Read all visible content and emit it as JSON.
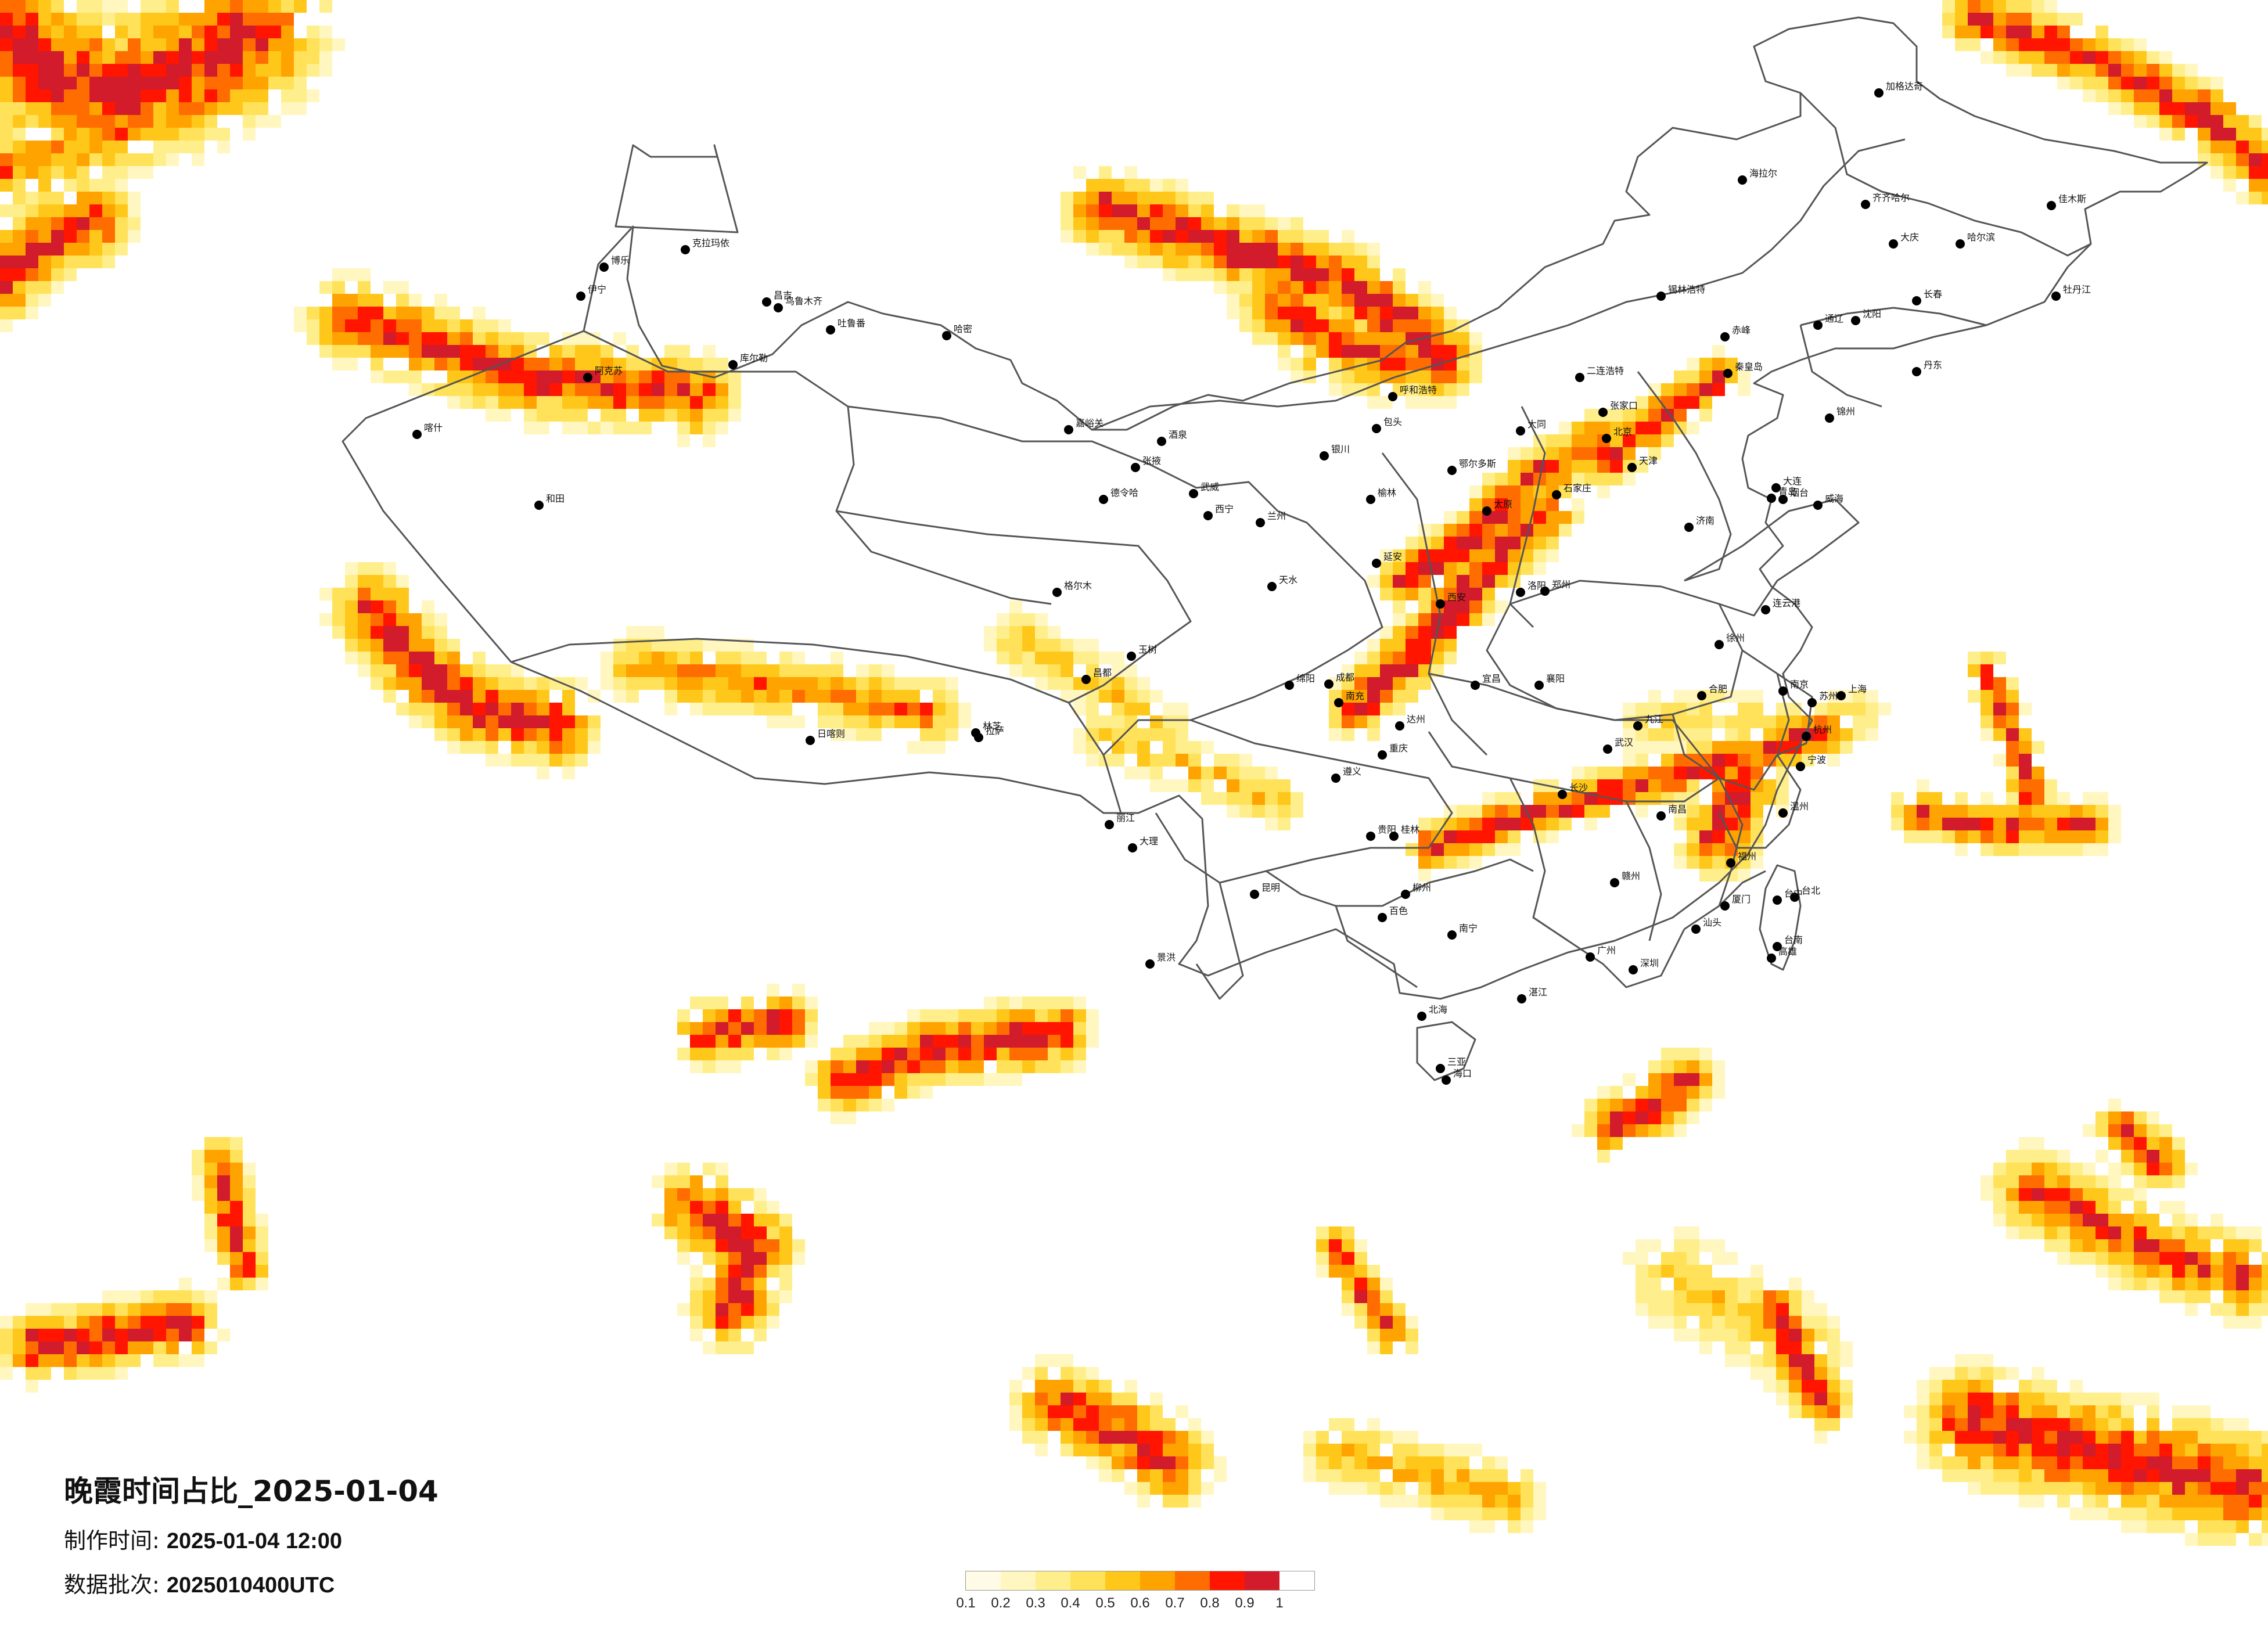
{
  "title": "晚霞时间占比_2025-01-04",
  "production_time": {
    "label": "制作时间:",
    "value": "2025-01-04 12:00"
  },
  "data_batch": {
    "label": "数据批次:",
    "value": "2025010400UTC"
  },
  "legend": {
    "ticks": [
      "0.1",
      "0.2",
      "0.3",
      "0.4",
      "0.5",
      "0.6",
      "0.7",
      "0.8",
      "0.9",
      "1"
    ],
    "colors": [
      "#fffbe6",
      "#fff6c0",
      "#ffef8c",
      "#ffe259",
      "#ffc71a",
      "#ffa300",
      "#ff6d00",
      "#ff1500",
      "#d21b2b"
    ]
  },
  "cities": [
    {
      "name": "克拉玛依"
    },
    {
      "name": "博乐"
    },
    {
      "name": "伊宁"
    },
    {
      "name": "昌吉"
    },
    {
      "name": "乌鲁木齐"
    },
    {
      "name": "吐鲁番"
    },
    {
      "name": "哈密"
    },
    {
      "name": "库尔勒"
    },
    {
      "name": "阿克苏"
    },
    {
      "name": "喀什"
    },
    {
      "name": "和田"
    },
    {
      "name": "格尔木"
    },
    {
      "name": "德令哈"
    },
    {
      "name": "西宁"
    },
    {
      "name": "兰州"
    },
    {
      "name": "银川"
    },
    {
      "name": "呼和浩特"
    },
    {
      "name": "包头"
    },
    {
      "name": "北京"
    },
    {
      "name": "天津"
    },
    {
      "name": "石家庄"
    },
    {
      "name": "太原"
    },
    {
      "name": "郑州"
    },
    {
      "name": "济南"
    },
    {
      "name": "青岛"
    },
    {
      "name": "西安"
    },
    {
      "name": "成都"
    },
    {
      "name": "重庆"
    },
    {
      "name": "武汉"
    },
    {
      "name": "长沙"
    },
    {
      "name": "南京"
    },
    {
      "name": "上海"
    },
    {
      "name": "杭州"
    },
    {
      "name": "合肥"
    },
    {
      "name": "南昌"
    },
    {
      "name": "福州"
    },
    {
      "name": "广州"
    },
    {
      "name": "深圳"
    },
    {
      "name": "南宁"
    },
    {
      "name": "海口"
    },
    {
      "name": "贵阳"
    },
    {
      "name": "昆明"
    },
    {
      "name": "拉萨"
    },
    {
      "name": "日喀则"
    },
    {
      "name": "林芝"
    },
    {
      "name": "昌都"
    },
    {
      "name": "沈阳"
    },
    {
      "name": "长春"
    },
    {
      "name": "哈尔滨"
    },
    {
      "name": "齐齐哈尔"
    },
    {
      "name": "大庆"
    },
    {
      "name": "牡丹江"
    },
    {
      "name": "佳木斯"
    },
    {
      "name": "海拉尔"
    },
    {
      "name": "加格达奇"
    },
    {
      "name": "台北"
    },
    {
      "name": "台中"
    },
    {
      "name": "台南"
    },
    {
      "name": "高雄"
    },
    {
      "name": "大连"
    },
    {
      "name": "秦皇岛"
    },
    {
      "name": "张家口"
    },
    {
      "name": "大同"
    },
    {
      "name": "洛阳"
    },
    {
      "name": "襄阳"
    },
    {
      "name": "宜昌"
    },
    {
      "name": "桂林"
    },
    {
      "name": "柳州"
    },
    {
      "name": "厦门"
    },
    {
      "name": "温州"
    },
    {
      "name": "宁波"
    },
    {
      "name": "苏州"
    },
    {
      "name": "徐州"
    },
    {
      "name": "连云港"
    },
    {
      "name": "烟台"
    },
    {
      "name": "威海"
    },
    {
      "name": "丹东"
    },
    {
      "name": "锦州"
    },
    {
      "name": "通辽"
    },
    {
      "name": "赤峰"
    },
    {
      "name": "锡林浩特"
    },
    {
      "name": "二连浩特"
    },
    {
      "name": "鄂尔多斯"
    },
    {
      "name": "榆林"
    },
    {
      "name": "延安"
    },
    {
      "name": "天水"
    },
    {
      "name": "酒泉"
    },
    {
      "name": "嘉峪关"
    },
    {
      "name": "张掖"
    },
    {
      "name": "武威"
    },
    {
      "name": "玉树"
    },
    {
      "name": "绵阳"
    },
    {
      "name": "南充"
    },
    {
      "name": "达州"
    },
    {
      "name": "遵义"
    },
    {
      "name": "大理"
    },
    {
      "name": "丽江"
    },
    {
      "name": "景洪"
    },
    {
      "name": "百色"
    },
    {
      "name": "北海"
    },
    {
      "name": "三亚"
    },
    {
      "name": "湛江"
    },
    {
      "name": "汕头"
    },
    {
      "name": "赣州"
    },
    {
      "name": "九江"
    }
  ]
}
